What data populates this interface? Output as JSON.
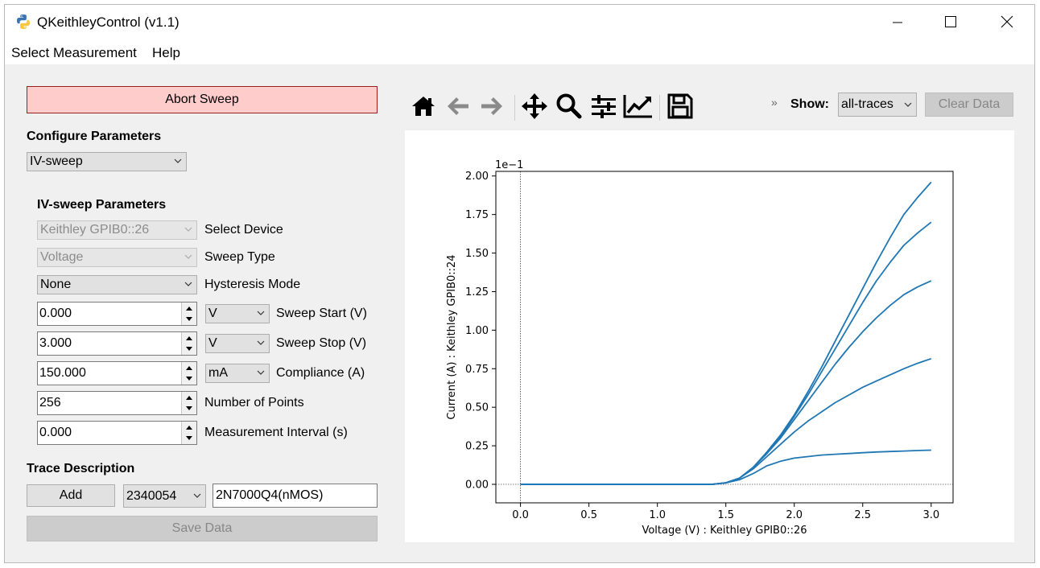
{
  "window": {
    "title": "QKeithleyControl (v1.1)"
  },
  "menu": {
    "items": [
      "Select Measurement",
      "Help"
    ]
  },
  "left": {
    "abort_label": "Abort Sweep",
    "configure_title": "Configure Parameters",
    "mode_value": "IV-sweep",
    "params_title": "IV-sweep Parameters",
    "device": {
      "value": "Keithley GPIB0::26",
      "label": "Select Device"
    },
    "sweep_type": {
      "value": "Voltage",
      "label": "Sweep Type"
    },
    "hysteresis": {
      "value": "None",
      "label": "Hysteresis Mode"
    },
    "sweep_start": {
      "value": "0.000",
      "unit": "V",
      "label": "Sweep Start (V)"
    },
    "sweep_stop": {
      "value": "3.000",
      "unit": "V",
      "label": "Sweep Stop (V)"
    },
    "compliance": {
      "value": "150.000",
      "unit": "mA",
      "label": "Compliance (A)"
    },
    "num_points": {
      "value": "256",
      "label": "Number of Points"
    },
    "interval": {
      "value": "0.000",
      "label": "Measurement Interval (s)"
    },
    "trace_title": "Trace Description",
    "add_label": "Add",
    "trace_id": "2340054",
    "trace_desc": "2N7000Q4(nMOS)",
    "save_label": "Save Data"
  },
  "toolbar": {
    "icons": [
      "home-icon",
      "back-icon",
      "forward-icon",
      "pan-icon",
      "zoom-icon",
      "configure-subplots-icon",
      "edit-axis-icon",
      "save-figure-icon"
    ],
    "show_label": "Show:",
    "show_value": "all-traces",
    "clear_label": "Clear Data"
  },
  "colors": {
    "trace": "#1f77b4",
    "abort_bg": "#ffcccc",
    "abort_border": "#9a1e1e"
  },
  "chart_data": {
    "type": "line",
    "title": "",
    "xlabel": "Voltage (V) : Keithley GPIB0::26",
    "ylabel": "Current (A) : Keithley GPIB0::24",
    "offset_text": "1e−1",
    "xlim": [
      -0.18,
      3.16
    ],
    "ylim": [
      -0.12,
      2.03
    ],
    "x_ticks": [
      "0.0",
      "0.5",
      "1.0",
      "1.5",
      "2.0",
      "2.5",
      "3.0"
    ],
    "y_ticks": [
      "0.00",
      "0.25",
      "0.50",
      "0.75",
      "1.00",
      "1.25",
      "1.50",
      "1.75",
      "2.00"
    ],
    "grid": false,
    "zero_lines": true,
    "x": [
      0.0,
      1.4,
      1.5,
      1.6,
      1.7,
      1.8,
      1.9,
      2.0,
      2.1,
      2.2,
      2.3,
      2.4,
      2.5,
      2.6,
      2.7,
      2.8,
      2.9,
      3.0
    ],
    "series": [
      {
        "values": [
          0.0,
          0.0,
          0.01,
          0.03,
          0.07,
          0.12,
          0.15,
          0.17,
          0.18,
          0.19,
          0.195,
          0.2,
          0.205,
          0.21,
          0.213,
          0.216,
          0.219,
          0.222
        ]
      },
      {
        "values": [
          0.0,
          0.0,
          0.01,
          0.04,
          0.1,
          0.18,
          0.26,
          0.34,
          0.41,
          0.47,
          0.53,
          0.58,
          0.63,
          0.67,
          0.71,
          0.75,
          0.785,
          0.815
        ]
      },
      {
        "values": [
          0.0,
          0.0,
          0.01,
          0.04,
          0.11,
          0.2,
          0.3,
          0.42,
          0.54,
          0.66,
          0.78,
          0.89,
          0.99,
          1.08,
          1.16,
          1.23,
          1.28,
          1.32
        ]
      },
      {
        "values": [
          0.0,
          0.0,
          0.01,
          0.04,
          0.11,
          0.2,
          0.31,
          0.44,
          0.58,
          0.73,
          0.88,
          1.03,
          1.18,
          1.32,
          1.44,
          1.55,
          1.63,
          1.7
        ]
      },
      {
        "values": [
          0.0,
          0.0,
          0.01,
          0.04,
          0.11,
          0.21,
          0.32,
          0.45,
          0.6,
          0.76,
          0.93,
          1.1,
          1.27,
          1.44,
          1.6,
          1.75,
          1.86,
          1.96
        ]
      }
    ]
  }
}
